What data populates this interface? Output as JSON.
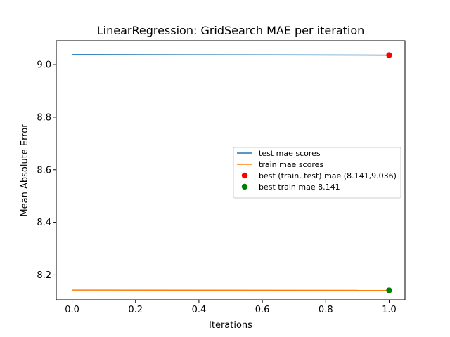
{
  "chart_data": {
    "type": "line",
    "title": "LinearRegression: GridSearch MAE per iteration",
    "xlabel": "Iterations",
    "ylabel": "Mean Absolute Error",
    "xlim": [
      -0.05,
      1.05
    ],
    "ylim": [
      8.105,
      9.091
    ],
    "xticks": [
      0.0,
      0.2,
      0.4,
      0.6,
      0.8,
      1.0
    ],
    "xtick_labels": [
      "0.0",
      "0.2",
      "0.4",
      "0.6",
      "0.8",
      "1.0"
    ],
    "yticks": [
      8.2,
      8.4,
      8.6,
      8.8,
      9.0
    ],
    "ytick_labels": [
      "8.2",
      "8.4",
      "8.6",
      "8.8",
      "9.0"
    ],
    "grid": false,
    "legend_position": "center-right",
    "series": [
      {
        "name": "test mae scores",
        "kind": "line",
        "color": "#1f77b4",
        "x": [
          0,
          1
        ],
        "y": [
          9.038,
          9.036
        ]
      },
      {
        "name": "train mae scores",
        "kind": "line",
        "color": "#ff7f0e",
        "x": [
          0,
          1
        ],
        "y": [
          8.142,
          8.141
        ]
      },
      {
        "name": "best (train, test) mae (8.141,9.036)",
        "kind": "scatter",
        "color": "#ff0000",
        "x": [
          1
        ],
        "y": [
          9.036
        ]
      },
      {
        "name": "best train mae 8.141",
        "kind": "scatter",
        "color": "#008000",
        "x": [
          1
        ],
        "y": [
          8.141
        ]
      }
    ]
  }
}
